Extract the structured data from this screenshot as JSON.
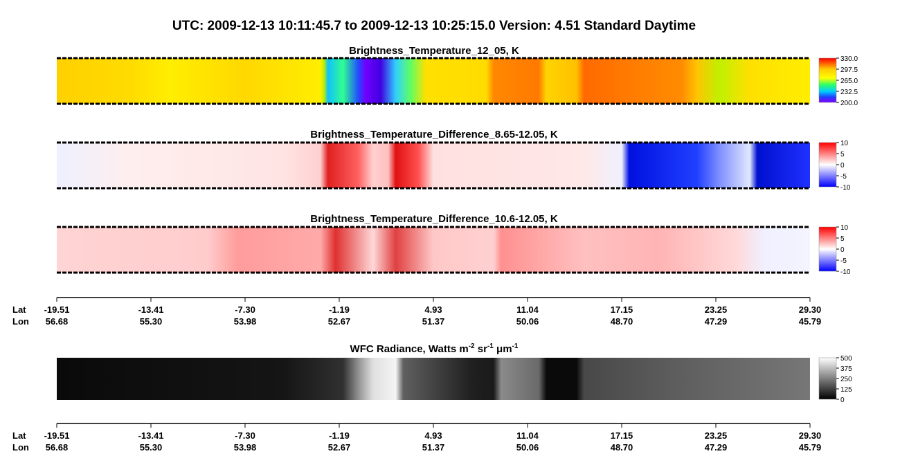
{
  "title": "UTC:  2009-12-13   10:11:45.7  to  2009-12-13   10:25:15.0    Version: 4.51  Standard Daytime",
  "panels": [
    {
      "title": "Brightness_Temperature_12_05, K",
      "colorbar": [
        "330.0",
        "297.5",
        "265.0",
        "232.5",
        "200.0"
      ]
    },
    {
      "title": "Brightness_Temperature_Difference_8.65-12.05, K",
      "colorbar": [
        "10",
        "5",
        "0",
        "-5",
        "-10"
      ]
    },
    {
      "title": "Brightness_Temperature_Difference_10.6-12.05, K",
      "colorbar": [
        "10",
        "5",
        "0",
        "-5",
        "-10"
      ]
    },
    {
      "title_parts": [
        "WFC Radiance, Watts m",
        "-2",
        " sr",
        "-1",
        " μm",
        "-1"
      ],
      "colorbar": [
        "500",
        "375",
        "250",
        "125",
        "0"
      ]
    }
  ],
  "axes": [
    {
      "row_labels": [
        "Lat",
        "Lon"
      ],
      "lat": [
        "-19.51",
        "-13.41",
        "-7.30",
        "-1.19",
        "4.93",
        "11.04",
        "17.15",
        "23.25",
        "29.30"
      ],
      "lon": [
        "56.68",
        "55.30",
        "53.98",
        "52.67",
        "51.37",
        "50.06",
        "48.70",
        "47.29",
        "45.79"
      ]
    },
    {
      "row_labels": [
        "Lat",
        "Lon"
      ],
      "lat": [
        "-19.51",
        "-13.41",
        "-7.30",
        "-1.19",
        "4.93",
        "11.04",
        "17.15",
        "23.25",
        "29.30"
      ],
      "lon": [
        "56.68",
        "55.30",
        "53.98",
        "52.67",
        "51.37",
        "50.06",
        "48.70",
        "47.29",
        "45.79"
      ]
    }
  ]
}
